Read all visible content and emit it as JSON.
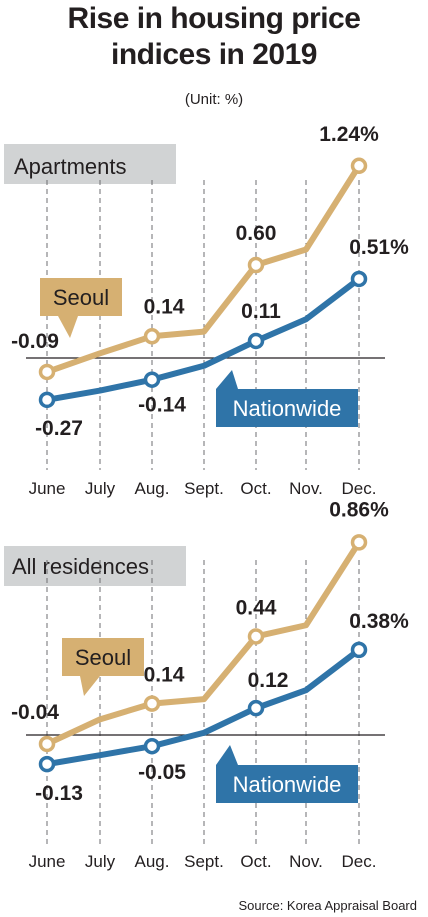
{
  "title_line1": "Rise in housing price",
  "title_line2": "indices in 2019",
  "unit": "(Unit: %)",
  "source": "Source: Korea Appraisal Board",
  "colors": {
    "seoul": "#d6b072",
    "nationwide": "#2f74a8",
    "label_bg": "#d1d3d4"
  },
  "chart_data": [
    {
      "type": "line",
      "title": "Apartments",
      "categories": [
        "June",
        "July",
        "Aug.",
        "Sept.",
        "Oct.",
        "Nov.",
        "Dec."
      ],
      "series": [
        {
          "name": "Seoul",
          "values": [
            -0.09,
            0.03,
            0.14,
            0.17,
            0.6,
            0.7,
            1.24
          ],
          "labels": [
            "-0.09",
            "",
            "0.14",
            "",
            "0.60",
            "",
            "1.24%"
          ]
        },
        {
          "name": "Nationwide",
          "values": [
            -0.27,
            -0.21,
            -0.14,
            -0.05,
            0.11,
            0.25,
            0.51
          ],
          "labels": [
            "-0.27",
            "",
            "-0.14",
            "",
            "0.11",
            "",
            "0.51%"
          ]
        }
      ],
      "zero_line": true
    },
    {
      "type": "line",
      "title": "All residences",
      "categories": [
        "June",
        "July",
        "Aug.",
        "Sept.",
        "Oct.",
        "Nov.",
        "Dec."
      ],
      "series": [
        {
          "name": "Seoul",
          "values": [
            -0.04,
            0.07,
            0.14,
            0.16,
            0.44,
            0.49,
            0.86
          ],
          "labels": [
            "-0.04",
            "",
            "0.14",
            "",
            "0.44",
            "",
            "0.86%"
          ]
        },
        {
          "name": "Nationwide",
          "values": [
            -0.13,
            -0.09,
            -0.05,
            0.01,
            0.12,
            0.2,
            0.38
          ],
          "labels": [
            "-0.13",
            "",
            "-0.05",
            "",
            "0.12",
            "",
            "0.38%"
          ]
        }
      ],
      "zero_line": true
    }
  ]
}
